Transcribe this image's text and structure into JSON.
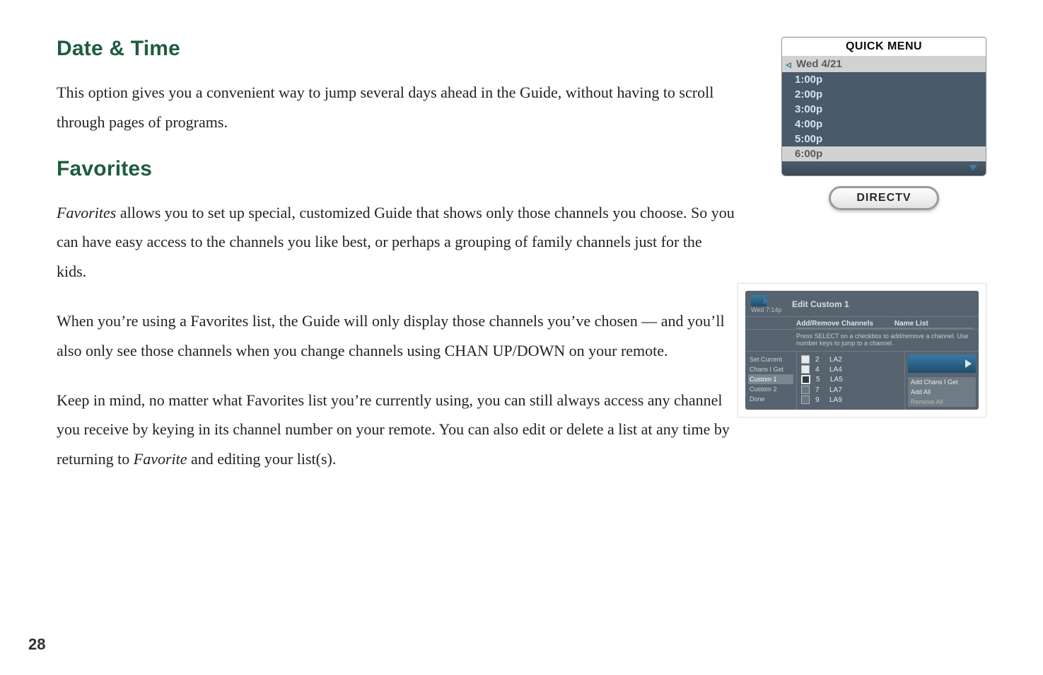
{
  "headings": {
    "date_time": "Date & Time",
    "favorites": "Favorites"
  },
  "paragraphs": {
    "p1": "This option gives you a convenient way to jump several days ahead in the Guide, without having to scroll through pages of programs.",
    "p2a": "Favorites",
    "p2b": " allows you to set up special, customized Guide that shows only those channels you choose. So you can have easy access to the channels you like best, or perhaps a grouping of family channels just for the kids.",
    "p3": "When you’re using a Favorites list, the Guide will only display those channels you’ve chosen — and you’ll also only see those channels when you change channels using  CHAN UP/DOWN on your remote.",
    "p4a": "Keep in mind, no matter what Favorites list you’re currently using, you can still always access any channel you receive by keying in its channel number on your remote. You can also edit or delete a list at any time by returning to ",
    "p4b": "Favorite",
    "p4c": " and editing your list(s)."
  },
  "page_number": "28",
  "quick_menu": {
    "title": "QUICK MENU",
    "header": "Wed 4/21",
    "items": [
      "1:00p",
      "2:00p",
      "3:00p",
      "4:00p",
      "5:00p",
      "6:00p"
    ],
    "light_index": 5,
    "badge": "DIRECTV"
  },
  "edit_custom": {
    "time": "Wed 7:14p",
    "title": "Edit Custom 1",
    "tab_left": "Add/Remove Channels",
    "tab_right": "Name List",
    "helper": "Press SELECT on a checkbox to add/remove a channel. Use number keys to jump to a channel.",
    "sidebar": [
      "Set Current",
      "Chans I Get",
      "Custom 1",
      "Custom 2",
      "Done"
    ],
    "sidebar_selected_index": 2,
    "rows": [
      {
        "num": "2",
        "label": "LA2",
        "cb": "filled"
      },
      {
        "num": "4",
        "label": "LA4",
        "cb": "filled"
      },
      {
        "num": "5",
        "label": "LA5",
        "cb": "boxed"
      },
      {
        "num": "7",
        "label": "LA7",
        "cb": "empty"
      },
      {
        "num": "9",
        "label": "LA9",
        "cb": "empty"
      }
    ],
    "buttons": [
      "Add Chans I Get",
      "Add All",
      "Remove All"
    ]
  }
}
